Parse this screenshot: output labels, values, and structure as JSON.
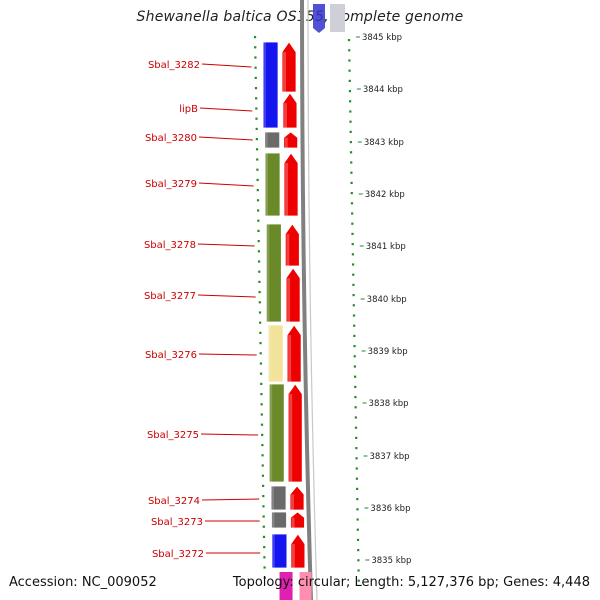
{
  "header": {
    "title": "Shewanella baltica OS155, complete genome"
  },
  "footer": {
    "accession": "Accession: NC_009052",
    "summary": "Topology: circular; Length: 5,127,376 bp; Genes: 4,448"
  },
  "scale": {
    "unit": "kbp",
    "ticks": [
      3845,
      3844,
      3843,
      3842,
      3841,
      3840,
      3839,
      3838,
      3837,
      3836,
      3835
    ],
    "tick_labels": [
      "3845 kbp",
      "3844 kbp",
      "3843 kbp",
      "3842 kbp",
      "3841 kbp",
      "3840 kbp",
      "3839 kbp",
      "3838 kbp",
      "3837 kbp",
      "3836 kbp",
      "3835 kbp"
    ]
  },
  "genes": [
    {
      "name": "Sbal_3282",
      "category_color": "#1515ee"
    },
    {
      "name": "lipB",
      "category_color": "#1515ee"
    },
    {
      "name": "Sbal_3280",
      "category_color": "#6a6a6a"
    },
    {
      "name": "Sbal_3279",
      "category_color": "#6a8a2a"
    },
    {
      "name": "Sbal_3278",
      "category_color": "#6a8a2a"
    },
    {
      "name": "Sbal_3277",
      "category_color": "#6a8a2a"
    },
    {
      "name": "Sbal_3276",
      "category_color": "#f2e29a"
    },
    {
      "name": "Sbal_3275",
      "category_color": "#6a8a2a"
    },
    {
      "name": "Sbal_3274",
      "category_color": "#6a6a6a"
    },
    {
      "name": "Sbal_3273",
      "category_color": "#6a6a6a"
    },
    {
      "name": "Sbal_3272",
      "category_color": "#1515ee"
    }
  ],
  "colors": {
    "label_text": "#cc0000",
    "leader_line": "#cc0000",
    "strand_arrow": "#ee0000",
    "tick_green": "#2a8a2a",
    "backbone": "#808080"
  }
}
